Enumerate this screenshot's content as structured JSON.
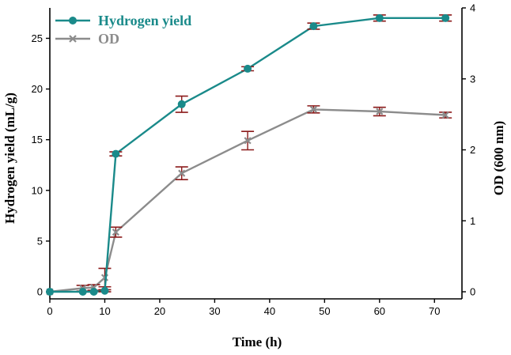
{
  "chart_data": {
    "type": "line",
    "x": [
      0,
      6,
      8,
      10,
      12,
      24,
      36,
      48,
      60,
      72
    ],
    "xlabel": "Time (h)",
    "ylabel": "Hydrogen yield (mL/g)",
    "y2label": "OD (600 nm)",
    "xlim": [
      0,
      75
    ],
    "ylim": [
      -0.7,
      28
    ],
    "y2lim": [
      -0.1,
      4
    ],
    "xticks": [
      0,
      10,
      20,
      30,
      40,
      50,
      60,
      70
    ],
    "yticks": [
      0,
      5,
      10,
      15,
      20,
      25
    ],
    "y2ticks": [
      0,
      1,
      2,
      3,
      4
    ],
    "grid": false,
    "legend_position": "top-left",
    "series": [
      {
        "name": "Hydrogen yield",
        "axis": "left",
        "color": "#1a8a8a",
        "marker": "filled-circle",
        "values": [
          0,
          0,
          0,
          0.1,
          13.6,
          18.5,
          22.0,
          26.2,
          27.0,
          27.0
        ],
        "errors": [
          0,
          0,
          0,
          0.1,
          0.2,
          0.8,
          0.2,
          0.3,
          0.3,
          0.3
        ]
      },
      {
        "name": "OD",
        "axis": "right",
        "color": "#8c8c8c",
        "marker": "x-cross",
        "values": [
          0.0,
          0.05,
          0.06,
          0.2,
          0.84,
          1.67,
          2.13,
          2.57,
          2.54,
          2.49
        ],
        "errors": [
          0,
          0.04,
          0.04,
          0.13,
          0.07,
          0.09,
          0.13,
          0.05,
          0.06,
          0.04
        ]
      }
    ],
    "error_bar_color": "#8b1a1a"
  }
}
